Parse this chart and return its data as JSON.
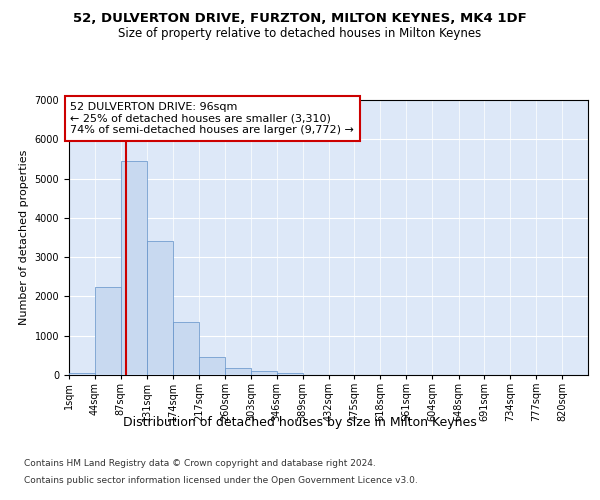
{
  "title1": "52, DULVERTON DRIVE, FURZTON, MILTON KEYNES, MK4 1DF",
  "title2": "Size of property relative to detached houses in Milton Keynes",
  "xlabel": "Distribution of detached houses by size in Milton Keynes",
  "ylabel": "Number of detached properties",
  "footnote1": "Contains HM Land Registry data © Crown copyright and database right 2024.",
  "footnote2": "Contains public sector information licensed under the Open Government Licence v3.0.",
  "bar_color": "#c8d9f0",
  "bar_edge_color": "#6090c8",
  "vline_color": "#cc0000",
  "vline_x": 96,
  "annotation_line1": "52 DULVERTON DRIVE: 96sqm",
  "annotation_line2": "← 25% of detached houses are smaller (3,310)",
  "annotation_line3": "74% of semi-detached houses are larger (9,772) →",
  "annotation_box_color": "#ffffff",
  "annotation_box_edge": "#cc0000",
  "bins": [
    1,
    44,
    87,
    131,
    174,
    217,
    260,
    303,
    346,
    389,
    432,
    475,
    518,
    561,
    604,
    648,
    691,
    734,
    777,
    820,
    863
  ],
  "bar_heights": [
    50,
    2250,
    5450,
    3400,
    1350,
    450,
    175,
    100,
    50,
    5,
    5,
    0,
    0,
    0,
    0,
    0,
    0,
    0,
    0,
    0
  ],
  "ylim": [
    0,
    7000
  ],
  "yticks": [
    0,
    1000,
    2000,
    3000,
    4000,
    5000,
    6000,
    7000
  ],
  "background_color": "#dde8f8",
  "fig_background": "#ffffff",
  "title1_fontsize": 9.5,
  "title2_fontsize": 8.5,
  "xlabel_fontsize": 9,
  "ylabel_fontsize": 8,
  "tick_fontsize": 7,
  "footnote_fontsize": 6.5,
  "annotation_fontsize": 8
}
